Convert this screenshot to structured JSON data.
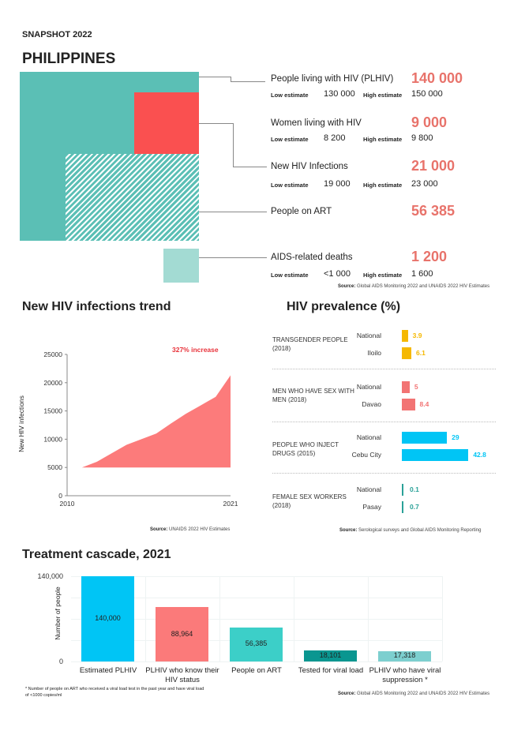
{
  "header": {
    "snapshot": "SNAPSHOT 2022",
    "country": "PHILIPPINES"
  },
  "colors": {
    "teal": "#5bbfb5",
    "red": "#fa5050",
    "light_teal": "#a3dbd3",
    "accent_number": "#e8736b"
  },
  "estimates": {
    "low_label": "Low estimate",
    "high_label": "High estimate",
    "items": [
      {
        "label": "People living with HIV (PLHIV)",
        "value": "140 000",
        "low": "130 000",
        "high": "150 000"
      },
      {
        "label": "Women living with HIV",
        "value": "9 000",
        "low": "8 200",
        "high": "9 800"
      },
      {
        "label": "New HIV Infections",
        "value": "21 000",
        "low": "19 000",
        "high": "23 000"
      },
      {
        "label": "People on ART",
        "value": "56 385"
      },
      {
        "label": "AIDS-related deaths",
        "value": "1 200",
        "low": "<1 000",
        "high": "1 600"
      }
    ],
    "source_bold": "Source:",
    "source": " Global AIDS Monitoring 2022 and UNAIDS 2022 HIV Estimates"
  },
  "chart_data": [
    {
      "type": "area",
      "title": "New HIV infections trend",
      "ylabel": "New HIV infections",
      "xlabel": "",
      "annotation": "327% increase",
      "ylim": [
        0,
        25000
      ],
      "xlim": [
        2010,
        2021
      ],
      "yticks": [
        "25000",
        "20000",
        "15000",
        "10000",
        "5000",
        "0"
      ],
      "xticks": [
        "2010",
        "2021"
      ],
      "x": [
        2011,
        2012,
        2013,
        2014,
        2015,
        2016,
        2017,
        2018,
        2019,
        2020,
        2021
      ],
      "values": [
        5000,
        6000,
        7500,
        9000,
        10000,
        11000,
        12800,
        14500,
        16000,
        17500,
        21300
      ],
      "baseline": 5000,
      "color": "#fc7b7b",
      "source_bold": "Source:",
      "source": " UNAIDS 2022 HIV Estimates"
    },
    {
      "type": "bar",
      "title": "HIV prevalence (%)",
      "groups": [
        {
          "label": "TRANSGENDER PEOPLE (2018)",
          "color": "#f5b800",
          "bars": [
            {
              "name": "National",
              "value": 3.9
            },
            {
              "name": "Iloilo",
              "value": 6.1
            }
          ]
        },
        {
          "label": "MEN WHO HAVE SEX WITH MEN (2018)",
          "color": "#f27474",
          "bars": [
            {
              "name": "National",
              "value": 5
            },
            {
              "name": "Davao",
              "value": 8.4
            }
          ]
        },
        {
          "label": "PEOPLE WHO INJECT DRUGS (2015)",
          "color": "#00c5f5",
          "bars": [
            {
              "name": "National",
              "value": 29
            },
            {
              "name": "Cebu City",
              "value": 42.8
            }
          ]
        },
        {
          "label": "FEMALE SEX WORKERS (2018)",
          "color": "#2aa198",
          "bars": [
            {
              "name": "National",
              "value": 0.1
            },
            {
              "name": "Pasay",
              "value": 0.7
            }
          ]
        }
      ],
      "source_bold": "Source:",
      "source": " Serological surveys and Global AIDS Monitoring Reporting"
    },
    {
      "type": "bar",
      "title": "Treatment cascade, 2021",
      "ylabel": "Number of people",
      "ylim": [
        0,
        140000
      ],
      "yticks": [
        "140,000",
        "0"
      ],
      "categories": [
        "Estimated PLHIV",
        "PLHIV who know their HIV status",
        "People on ART",
        "Tested for viral load",
        "PLHIV who have viral suppression *"
      ],
      "values": [
        140000,
        88964,
        56385,
        18101,
        17318
      ],
      "labels": [
        "140,000",
        "88,964",
        "56,385",
        "18,101",
        "17,318"
      ],
      "colors": [
        "#00c5f5",
        "#fb7a7a",
        "#3ccfc8",
        "#0a9690",
        "#7dcfcf"
      ],
      "footnote": "* Number of people on ART who received a viral load test in the past year and have viral load of <1000 copies/ml",
      "source_bold": "Source:",
      "source": " Global AIDS Monitoring 2022 and UNAIDS 2022 HIV Estimates"
    }
  ]
}
